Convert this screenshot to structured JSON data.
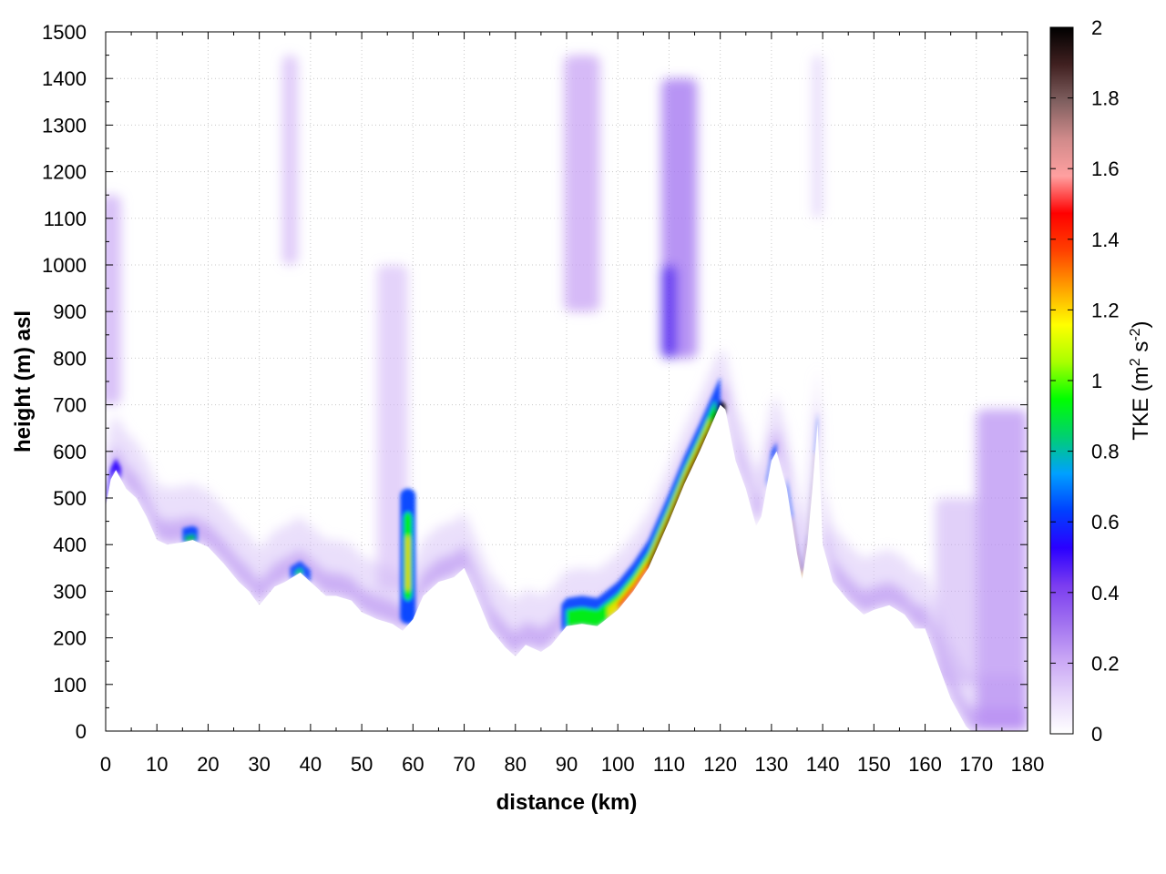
{
  "chart_data": {
    "type": "heatmap",
    "xlabel": "distance (km)",
    "ylabel": "height (m) asl",
    "xlim": [
      0,
      180
    ],
    "ylim": [
      0,
      1500
    ],
    "x_ticks": [
      "0",
      "10",
      "20",
      "30",
      "40",
      "50",
      "60",
      "70",
      "80",
      "90",
      "100",
      "110",
      "120",
      "130",
      "140",
      "150",
      "160",
      "170",
      "180"
    ],
    "y_ticks": [
      "0",
      "100",
      "200",
      "300",
      "400",
      "500",
      "600",
      "700",
      "800",
      "900",
      "1000",
      "1100",
      "1200",
      "1300",
      "1400",
      "1500"
    ],
    "grid": true,
    "colorbar": {
      "label_main": "TKE (m",
      "label_sup1": "2",
      "label_mid": " s",
      "label_sup2": "-2",
      "label_end": ")",
      "range": [
        0,
        2
      ],
      "ticks": [
        "0",
        "0.2",
        "0.4",
        "0.6",
        "0.8",
        "1",
        "1.2",
        "1.4",
        "1.6",
        "1.8",
        "2"
      ],
      "placement": "right",
      "colors": [
        "#ffffff",
        "#e6d6fa",
        "#c9a6f5",
        "#a070f0",
        "#7a3cf0",
        "#2a00ff",
        "#0040ff",
        "#00a0ff",
        "#00d070",
        "#00ff00",
        "#aaff00",
        "#ffff00",
        "#ffa000",
        "#ff4000",
        "#ff0000",
        "#ffa0a0",
        "#d08a8a",
        "#806060",
        "#402020",
        "#000000"
      ]
    },
    "terrain": {
      "x": [
        0,
        1,
        2,
        3,
        4,
        6,
        8,
        10,
        12,
        15,
        17,
        20,
        23,
        26,
        28,
        30,
        33,
        35,
        38,
        40,
        43,
        45,
        48,
        50,
        53,
        56,
        58,
        60,
        62,
        65,
        68,
        70,
        72,
        75,
        78,
        80,
        82,
        85,
        87,
        90,
        93,
        96,
        100,
        103,
        106,
        110,
        113,
        116,
        118,
        120,
        121,
        123,
        125,
        127,
        128,
        130,
        131,
        133,
        135,
        136,
        137,
        138,
        139,
        140,
        142,
        145,
        148,
        150,
        153,
        156,
        158,
        160,
        163,
        165,
        167,
        168,
        169,
        170,
        180
      ],
      "y": [
        480,
        540,
        560,
        540,
        520,
        500,
        460,
        410,
        400,
        405,
        410,
        395,
        360,
        320,
        300,
        270,
        310,
        320,
        340,
        320,
        290,
        290,
        280,
        255,
        240,
        230,
        215,
        240,
        290,
        320,
        330,
        350,
        300,
        220,
        180,
        160,
        185,
        170,
        185,
        225,
        230,
        225,
        260,
        300,
        350,
        450,
        530,
        600,
        650,
        700,
        690,
        580,
        520,
        440,
        460,
        580,
        600,
        520,
        380,
        325,
        400,
        520,
        660,
        400,
        320,
        280,
        250,
        260,
        270,
        250,
        220,
        220,
        130,
        70,
        30,
        10,
        0,
        0,
        0
      ]
    }
  }
}
